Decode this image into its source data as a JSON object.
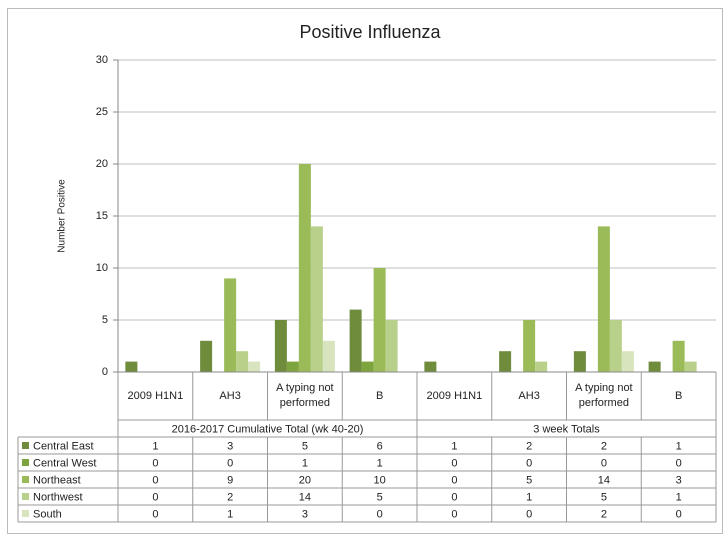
{
  "chart_data": {
    "type": "bar",
    "title": "Positive Influenza",
    "y_label": "Number Positive",
    "categories": [
      "2009 H1N1",
      "AH3",
      "A typing not performed",
      "B",
      "2009 H1N1",
      "AH3",
      "A typing not performed",
      "B"
    ],
    "groups": [
      {
        "label": "2016-2017 Cumulative Total (wk 40-20)",
        "count": 4
      },
      {
        "label": "3 week Totals",
        "count": 4
      }
    ],
    "series": [
      {
        "name": "Central East",
        "color": "#6f8b3c",
        "values": [
          1,
          3,
          5,
          6,
          1,
          2,
          2,
          1
        ]
      },
      {
        "name": "Central West",
        "color": "#7ea43e",
        "values": [
          0,
          0,
          1,
          1,
          0,
          0,
          0,
          0
        ]
      },
      {
        "name": "Northeast",
        "color": "#9bbb59",
        "values": [
          0,
          9,
          20,
          10,
          0,
          5,
          14,
          3
        ]
      },
      {
        "name": "Northwest",
        "color": "#b9d08b",
        "values": [
          0,
          2,
          14,
          5,
          0,
          1,
          5,
          1
        ]
      },
      {
        "name": "South",
        "color": "#d7e4bd",
        "values": [
          0,
          1,
          3,
          0,
          0,
          0,
          2,
          0
        ]
      }
    ],
    "ylim": [
      0,
      30
    ],
    "yticks": [
      0,
      5,
      10,
      15,
      20,
      25,
      30
    ],
    "grid": true,
    "data_table": true
  }
}
